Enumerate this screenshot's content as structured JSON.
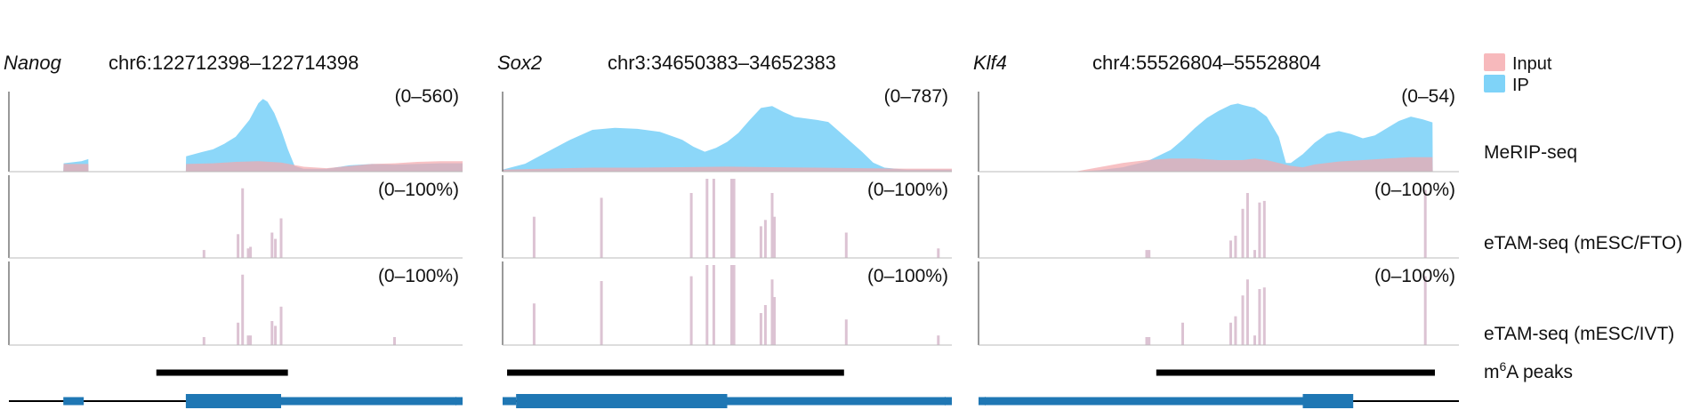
{
  "figure": {
    "legend": {
      "placement": "top-right",
      "items": [
        {
          "label": "Input",
          "color": "#f7b9bc"
        },
        {
          "label": "IP",
          "color": "#7fd3f8"
        }
      ]
    },
    "track_labels": [
      "MeRIP-seq",
      "eTAM-seq (mESC/FTO)",
      "eTAM-seq (mESC/IVT)",
      "m",
      "6",
      "A peaks"
    ],
    "colors": {
      "input": "#f4a6ab",
      "ip": "#7fd3f8",
      "etam_bar": "#dcc3d3",
      "peak": "#000000",
      "gene": "#1f77b4",
      "axis": "#555555"
    }
  },
  "chart_data": [
    {
      "type": "area",
      "gene": "Nanog",
      "locus": "chr6:122712398–122714398",
      "x_range": [
        0,
        2000
      ],
      "merip": {
        "range_label": "(0–560)",
        "ylim": [
          0,
          560
        ],
        "input": [
          [
            0,
            0
          ],
          [
            240,
            0
          ],
          [
            241,
            55
          ],
          [
            350,
            55
          ],
          [
            351,
            0
          ],
          [
            780,
            0
          ],
          [
            781,
            55
          ],
          [
            900,
            60
          ],
          [
            1000,
            70
          ],
          [
            1100,
            75
          ],
          [
            1200,
            65
          ],
          [
            1300,
            35
          ],
          [
            1400,
            25
          ],
          [
            1500,
            40
          ],
          [
            1600,
            55
          ],
          [
            1700,
            60
          ],
          [
            1800,
            70
          ],
          [
            1900,
            75
          ],
          [
            2000,
            75
          ]
        ],
        "ip": [
          [
            0,
            0
          ],
          [
            240,
            0
          ],
          [
            241,
            60
          ],
          [
            320,
            75
          ],
          [
            350,
            90
          ],
          [
            351,
            0
          ],
          [
            780,
            0
          ],
          [
            781,
            110
          ],
          [
            850,
            140
          ],
          [
            900,
            160
          ],
          [
            950,
            200
          ],
          [
            1000,
            250
          ],
          [
            1030,
            310
          ],
          [
            1060,
            370
          ],
          [
            1080,
            430
          ],
          [
            1100,
            490
          ],
          [
            1120,
            520
          ],
          [
            1140,
            500
          ],
          [
            1170,
            420
          ],
          [
            1200,
            300
          ],
          [
            1230,
            160
          ],
          [
            1260,
            40
          ],
          [
            1300,
            20
          ],
          [
            1400,
            20
          ],
          [
            1500,
            45
          ],
          [
            1600,
            55
          ],
          [
            1700,
            50
          ],
          [
            1800,
            55
          ],
          [
            1900,
            60
          ],
          [
            2000,
            60
          ]
        ]
      },
      "etam_fto": {
        "range_label": "(0–100%)",
        "ylim": [
          0,
          100
        ],
        "sites": [
          [
            860,
            10
          ],
          [
            1010,
            30
          ],
          [
            1030,
            88
          ],
          [
            1055,
            12
          ],
          [
            1065,
            14
          ],
          [
            1160,
            32
          ],
          [
            1175,
            24
          ],
          [
            1200,
            50
          ]
        ]
      },
      "etam_ivt": {
        "range_label": "(0–100%)",
        "ylim": [
          0,
          100
        ],
        "sites": [
          [
            860,
            10
          ],
          [
            1010,
            28
          ],
          [
            1030,
            88
          ],
          [
            1055,
            12
          ],
          [
            1065,
            12
          ],
          [
            1160,
            30
          ],
          [
            1175,
            24
          ],
          [
            1200,
            48
          ],
          [
            1700,
            10
          ]
        ]
      },
      "m6a_peaks": [
        [
          650,
          1230
        ]
      ],
      "gene_model": {
        "line": [
          0,
          2000
        ],
        "utr": [
          [
            240,
            330
          ],
          [
            1200,
            2000
          ]
        ],
        "cds": [
          [
            780,
            1200
          ]
        ],
        "strand": "+"
      }
    },
    {
      "type": "area",
      "gene": "Sox2",
      "locus": "chr3:34650383–34652383",
      "x_range": [
        0,
        2000
      ],
      "merip": {
        "range_label": "(0–787)",
        "ylim": [
          0,
          787
        ],
        "input": [
          [
            0,
            20
          ],
          [
            200,
            30
          ],
          [
            400,
            40
          ],
          [
            600,
            40
          ],
          [
            800,
            45
          ],
          [
            1000,
            50
          ],
          [
            1200,
            45
          ],
          [
            1400,
            40
          ],
          [
            1600,
            35
          ],
          [
            1800,
            30
          ],
          [
            2000,
            30
          ]
        ],
        "ip": [
          [
            0,
            20
          ],
          [
            100,
            80
          ],
          [
            200,
            200
          ],
          [
            300,
            320
          ],
          [
            400,
            420
          ],
          [
            500,
            440
          ],
          [
            600,
            430
          ],
          [
            700,
            400
          ],
          [
            800,
            320
          ],
          [
            850,
            250
          ],
          [
            900,
            200
          ],
          [
            950,
            240
          ],
          [
            1000,
            300
          ],
          [
            1050,
            390
          ],
          [
            1100,
            520
          ],
          [
            1150,
            640
          ],
          [
            1200,
            660
          ],
          [
            1250,
            600
          ],
          [
            1300,
            550
          ],
          [
            1400,
            520
          ],
          [
            1450,
            500
          ],
          [
            1500,
            400
          ],
          [
            1550,
            300
          ],
          [
            1600,
            200
          ],
          [
            1650,
            90
          ],
          [
            1700,
            40
          ],
          [
            1800,
            20
          ],
          [
            2000,
            20
          ]
        ]
      },
      "etam_fto": {
        "range_label": "(0–100%)",
        "ylim": [
          0,
          100
        ],
        "sites": [
          [
            140,
            52
          ],
          [
            440,
            76
          ],
          [
            840,
            82
          ],
          [
            910,
            100
          ],
          [
            940,
            100
          ],
          [
            1020,
            100
          ],
          [
            1030,
            100
          ],
          [
            1150,
            40
          ],
          [
            1170,
            48
          ],
          [
            1200,
            82
          ],
          [
            1210,
            52
          ],
          [
            1530,
            32
          ],
          [
            1940,
            12
          ]
        ]
      },
      "etam_ivt": {
        "range_label": "(0–100%)",
        "ylim": [
          0,
          100
        ],
        "sites": [
          [
            140,
            52
          ],
          [
            440,
            80
          ],
          [
            840,
            86
          ],
          [
            910,
            100
          ],
          [
            940,
            100
          ],
          [
            1020,
            100
          ],
          [
            1030,
            100
          ],
          [
            1150,
            40
          ],
          [
            1170,
            50
          ],
          [
            1200,
            82
          ],
          [
            1210,
            60
          ],
          [
            1530,
            32
          ],
          [
            1940,
            12
          ]
        ]
      },
      "m6a_peaks": [
        [
          20,
          1520
        ]
      ],
      "gene_model": {
        "line": [
          0,
          2000
        ],
        "utr": [
          [
            0,
            60
          ],
          [
            1000,
            2000
          ]
        ],
        "cds": [
          [
            60,
            1000
          ]
        ],
        "strand": "+"
      }
    },
    {
      "type": "area",
      "gene": "Klf4",
      "locus": "chr4:55526804–55528804",
      "x_range": [
        0,
        2000
      ],
      "merip": {
        "range_label": "(0–54)",
        "ylim": [
          0,
          54
        ],
        "input": [
          [
            0,
            0
          ],
          [
            400,
            0
          ],
          [
            500,
            3
          ],
          [
            600,
            6
          ],
          [
            700,
            8
          ],
          [
            800,
            9
          ],
          [
            900,
            9
          ],
          [
            1000,
            8
          ],
          [
            1100,
            8
          ],
          [
            1150,
            9
          ],
          [
            1200,
            8
          ],
          [
            1250,
            6
          ],
          [
            1300,
            4
          ],
          [
            1350,
            3
          ],
          [
            1400,
            5
          ],
          [
            1500,
            7
          ],
          [
            1600,
            8
          ],
          [
            1700,
            9
          ],
          [
            1800,
            10
          ],
          [
            1890,
            10
          ],
          [
            1891,
            0
          ],
          [
            2000,
            0
          ]
        ],
        "ip": [
          [
            0,
            0
          ],
          [
            400,
            0
          ],
          [
            500,
            1
          ],
          [
            600,
            3
          ],
          [
            700,
            7
          ],
          [
            800,
            15
          ],
          [
            850,
            22
          ],
          [
            900,
            30
          ],
          [
            950,
            37
          ],
          [
            1000,
            42
          ],
          [
            1050,
            46
          ],
          [
            1080,
            47
          ],
          [
            1100,
            46
          ],
          [
            1150,
            44
          ],
          [
            1200,
            38
          ],
          [
            1250,
            24
          ],
          [
            1280,
            6
          ],
          [
            1300,
            6
          ],
          [
            1350,
            12
          ],
          [
            1400,
            20
          ],
          [
            1450,
            26
          ],
          [
            1500,
            28
          ],
          [
            1550,
            26
          ],
          [
            1600,
            23
          ],
          [
            1650,
            25
          ],
          [
            1700,
            30
          ],
          [
            1750,
            35
          ],
          [
            1800,
            38
          ],
          [
            1850,
            36
          ],
          [
            1890,
            34
          ],
          [
            1891,
            0
          ],
          [
            2000,
            0
          ]
        ]
      },
      "etam_fto": {
        "range_label": "(0–100%)",
        "ylim": [
          0,
          100
        ],
        "sites": [
          [
            700,
            10
          ],
          [
            710,
            10
          ],
          [
            1050,
            22
          ],
          [
            1070,
            28
          ],
          [
            1100,
            62
          ],
          [
            1120,
            82
          ],
          [
            1150,
            10
          ],
          [
            1170,
            70
          ],
          [
            1190,
            72
          ],
          [
            1860,
            86
          ]
        ]
      },
      "etam_ivt": {
        "range_label": "(0–100%)",
        "ylim": [
          0,
          100
        ],
        "sites": [
          [
            700,
            10
          ],
          [
            710,
            10
          ],
          [
            850,
            28
          ],
          [
            1050,
            28
          ],
          [
            1070,
            36
          ],
          [
            1100,
            62
          ],
          [
            1120,
            82
          ],
          [
            1150,
            12
          ],
          [
            1170,
            70
          ],
          [
            1190,
            72
          ],
          [
            1860,
            86
          ]
        ]
      },
      "m6a_peaks": [
        [
          740,
          1900
        ]
      ],
      "gene_model": {
        "line": [
          0,
          2000
        ],
        "utr": [
          [
            0,
            1350
          ]
        ],
        "cds": [
          [
            1350,
            1560
          ]
        ],
        "strand": "-"
      }
    }
  ]
}
